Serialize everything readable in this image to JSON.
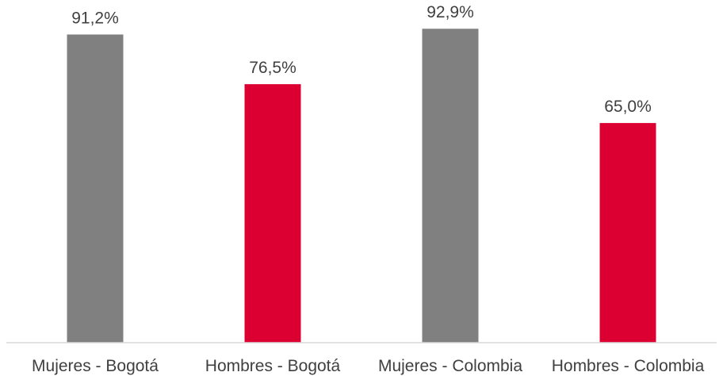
{
  "chart_data": {
    "type": "bar",
    "categories": [
      "Mujeres  - Bogotá",
      "Hombres - Bogotá",
      "Mujeres - Colombia",
      "Hombres - Colombia"
    ],
    "values": [
      91.2,
      76.5,
      92.9,
      65.0
    ],
    "value_labels": [
      "91,2%",
      "76,5%",
      "92,9%",
      "65,0%"
    ],
    "colors": [
      "#808080",
      "#dc0032",
      "#808080",
      "#dc0032"
    ],
    "title": "",
    "xlabel": "",
    "ylabel": "",
    "ylim": [
      0,
      100
    ],
    "grid": false,
    "legend": "none"
  }
}
